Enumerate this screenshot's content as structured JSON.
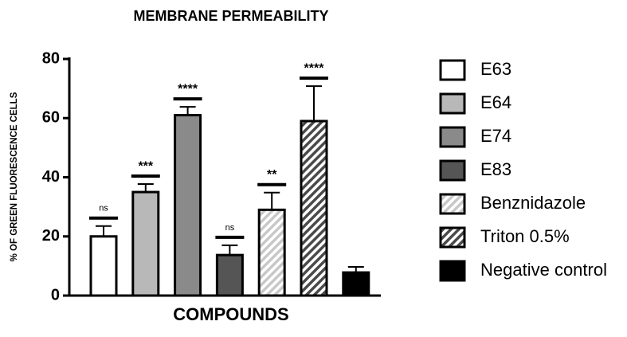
{
  "chart_data": {
    "type": "bar",
    "title": "MEMBRANE PERMEABILITY",
    "x_label": "COMPOUNDS",
    "y_label": "% OF GREEN FLUORESCENCE CELLS",
    "categories": [
      "E63",
      "E64",
      "E74",
      "E83",
      "Benznidazole",
      "Triton 0.5%",
      "Negative control"
    ],
    "values": [
      20,
      35,
      61,
      13.7,
      29,
      59,
      7.8
    ],
    "errors": [
      3.5,
      2.7,
      2.8,
      3.3,
      5.8,
      11.8,
      1.9
    ],
    "annotations": [
      "ns",
      "***",
      "****",
      "ns",
      "**",
      "****",
      null
    ],
    "colors": [
      "#ffffff",
      "#b8b8b8",
      "#8a8a8a",
      "#555555",
      "#c8c8c8",
      "#4a4a4a",
      "#000000"
    ],
    "hatch": [
      false,
      false,
      false,
      false,
      true,
      true,
      false
    ],
    "ylim": [
      0,
      80
    ],
    "yticks": [
      0,
      20,
      40,
      60,
      80
    ],
    "legend": "right"
  }
}
